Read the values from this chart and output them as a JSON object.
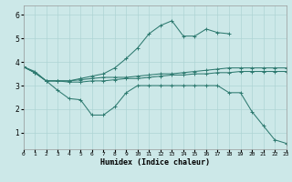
{
  "xlabel": "Humidex (Indice chaleur)",
  "background_color": "#cce8e8",
  "grid_color": "#aed4d4",
  "line_color": "#2e7a70",
  "x_ticks": [
    0,
    1,
    2,
    3,
    4,
    5,
    6,
    7,
    8,
    9,
    10,
    11,
    12,
    13,
    14,
    15,
    16,
    17,
    18,
    19,
    20,
    21,
    22,
    23
  ],
  "y_ticks": [
    1,
    2,
    3,
    4,
    5,
    6
  ],
  "xlim": [
    0,
    23
  ],
  "ylim": [
    0.3,
    6.4
  ],
  "lines": [
    {
      "x": [
        0,
        1,
        2,
        3,
        4,
        5,
        6,
        7,
        8,
        9,
        10,
        11,
        12,
        13,
        14,
        15,
        16,
        17,
        18
      ],
      "y": [
        3.8,
        3.6,
        3.2,
        3.2,
        3.2,
        3.3,
        3.4,
        3.5,
        3.75,
        4.15,
        4.6,
        5.2,
        5.55,
        5.75,
        5.1,
        5.1,
        5.4,
        5.25,
        5.2
      ]
    },
    {
      "x": [
        0,
        1,
        2,
        3,
        4,
        5,
        6,
        7,
        8,
        9,
        10,
        11,
        12,
        13,
        14,
        15,
        16,
        17,
        18,
        19,
        20,
        21,
        22,
        23
      ],
      "y": [
        3.8,
        3.55,
        3.2,
        3.2,
        3.2,
        3.25,
        3.3,
        3.35,
        3.35,
        3.35,
        3.4,
        3.45,
        3.5,
        3.5,
        3.55,
        3.6,
        3.65,
        3.7,
        3.75,
        3.75,
        3.75,
        3.75,
        3.75,
        3.75
      ]
    },
    {
      "x": [
        0,
        1,
        2,
        3,
        4,
        5,
        6,
        7,
        8,
        9,
        10,
        11,
        12,
        13,
        14,
        15,
        16,
        17,
        18,
        19,
        20,
        21,
        22,
        23
      ],
      "y": [
        3.8,
        3.55,
        3.2,
        3.2,
        3.15,
        3.15,
        3.2,
        3.2,
        3.25,
        3.3,
        3.3,
        3.35,
        3.4,
        3.45,
        3.45,
        3.5,
        3.5,
        3.55,
        3.55,
        3.6,
        3.6,
        3.6,
        3.6,
        3.6
      ]
    },
    {
      "x": [
        0,
        1,
        2,
        3,
        4,
        5,
        6,
        7,
        8,
        9,
        10,
        11,
        12,
        13,
        14,
        15,
        16,
        17,
        18,
        19,
        20,
        21,
        22,
        23
      ],
      "y": [
        3.8,
        3.55,
        3.2,
        2.8,
        2.45,
        2.4,
        1.75,
        1.75,
        2.1,
        2.7,
        3.0,
        3.0,
        3.0,
        3.0,
        3.0,
        3.0,
        3.0,
        3.0,
        2.7,
        2.7,
        1.9,
        1.3,
        0.7,
        0.55
      ]
    }
  ]
}
